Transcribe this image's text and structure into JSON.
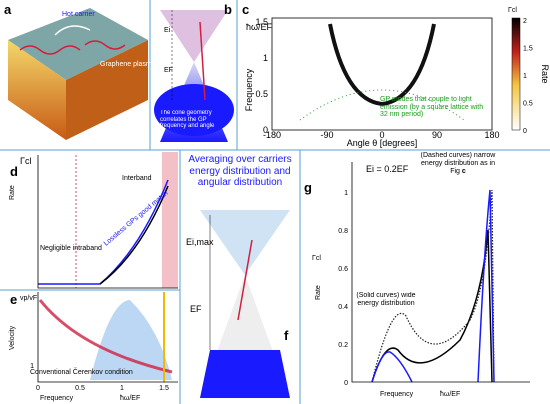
{
  "panels": {
    "a": {
      "label": "a",
      "texts": [
        "Hot carrier",
        "Graphene plasmon"
      ]
    },
    "b": {
      "label": "b",
      "energy_labels": [
        "Ei",
        "EF"
      ],
      "caption": "The cone geometry correlates the GP frequency and angle"
    },
    "c": {
      "label": "c",
      "y_label_top": "ħω/EF",
      "y_label": "Frequency",
      "yticks": [
        "1.5",
        "1",
        "0.5",
        "0"
      ],
      "xticks": [
        "-180",
        "-90",
        "0",
        "90",
        "180"
      ],
      "x_label": "Angle θ [degrees]",
      "colorbar_title": "Γcl",
      "colorbar_label": "Rate",
      "colorbar_ticks": [
        "2",
        "1.5",
        "1",
        "0.5",
        "0"
      ],
      "annotation": "GP modes that couple to light emission (by a square lattice with 32 nm period)"
    },
    "d": {
      "label": "d",
      "y_label_top": "Γcl",
      "y_label": "Rate",
      "texts": [
        "Negligible intraband",
        "Interband",
        "Lossless GPs good match"
      ]
    },
    "e": {
      "label": "e",
      "y_label_top": "vp/vF",
      "y_label": "Velocity",
      "xticks": [
        "0",
        "0.5",
        "1",
        "1.5"
      ],
      "yticks": [
        "1"
      ],
      "annotation": "Conventional Čerenkov condition",
      "x_label": "Frequency",
      "x_label_unit": "ħω/EF"
    },
    "f": {
      "label": "f",
      "title": "Averaging over carriers energy distribution and angular distribution",
      "energy_labels": [
        "Ei,max",
        "EF"
      ]
    },
    "g": {
      "label": "g",
      "energy": "Ei = 0.2EF",
      "yticks": [
        "1",
        "0.8",
        "0.6",
        "0.4",
        "0.2",
        "0"
      ],
      "y_label_top": "Γcl",
      "y_label": "Rate",
      "dashed_note": "(Dashed curves) narrow energy distribution as in Fig",
      "dashed_ref": "c",
      "solid_note": "(Solid curves) wide energy distribution",
      "x_label": "Frequency",
      "x_label_unit": "ħω/EF"
    }
  }
}
